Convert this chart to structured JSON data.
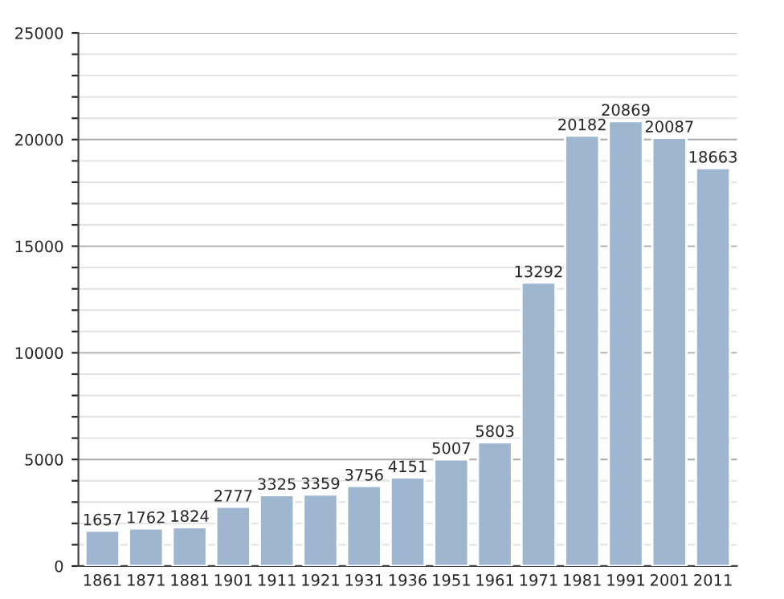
{
  "chart_data": {
    "type": "bar",
    "categories": [
      "1861",
      "1871",
      "1881",
      "1901",
      "1911",
      "1921",
      "1931",
      "1936",
      "1951",
      "1961",
      "1971",
      "1981",
      "1991",
      "2001",
      "2011"
    ],
    "values": [
      1657,
      1762,
      1824,
      2777,
      3325,
      3359,
      3756,
      4151,
      5007,
      5803,
      13292,
      20182,
      20869,
      20087,
      18663
    ],
    "color": "#9fb6d0",
    "data_labels": true,
    "grid": "y",
    "ylim": [
      0,
      25000
    ],
    "yticks": [
      0,
      {
        "value": 1000,
        "label": null
      },
      {
        "value": 2000,
        "label": null
      },
      {
        "value": 3000,
        "label": null
      },
      {
        "value": 4000,
        "label": null
      },
      5000,
      {
        "value": 6000,
        "label": null
      },
      {
        "value": 7000,
        "label": null
      },
      {
        "value": 8000,
        "label": null
      },
      {
        "value": 9000,
        "label": null
      },
      10000,
      {
        "value": 11000,
        "label": null
      },
      {
        "value": 12000,
        "label": null
      },
      {
        "value": 13000,
        "label": null
      },
      {
        "value": 14000,
        "label": null
      },
      15000,
      {
        "value": 16000,
        "label": null
      },
      {
        "value": 17000,
        "label": null
      },
      {
        "value": 18000,
        "label": null
      },
      {
        "value": 19000,
        "label": null
      },
      20000,
      {
        "value": 21000,
        "label": null
      },
      {
        "value": 22000,
        "label": null
      },
      {
        "value": 23000,
        "label": null
      },
      {
        "value": 24000,
        "label": null
      },
      25000
    ]
  }
}
